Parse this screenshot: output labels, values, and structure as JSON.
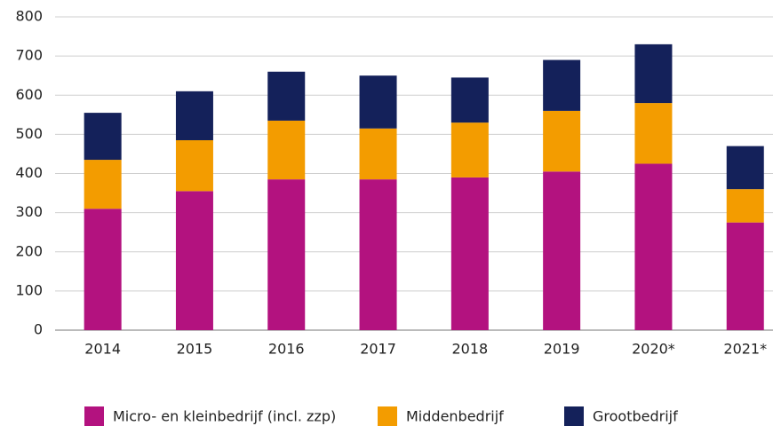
{
  "chart_data": {
    "type": "stacked_bar",
    "categories": [
      "2014",
      "2015",
      "2016",
      "2017",
      "2018",
      "2019",
      "2020*",
      "2021*"
    ],
    "series": [
      {
        "name": "Micro- en kleinbedrijf (incl. zzp)",
        "color": "#b3127f",
        "values": [
          310,
          355,
          385,
          385,
          390,
          405,
          425,
          275
        ]
      },
      {
        "name": "Middenbedrijf",
        "color": "#f39c00",
        "values": [
          125,
          130,
          150,
          130,
          140,
          155,
          155,
          85
        ]
      },
      {
        "name": "Grootbedrijf",
        "color": "#14215a",
        "values": [
          120,
          125,
          125,
          135,
          115,
          130,
          150,
          110
        ]
      }
    ],
    "ylim": [
      0,
      800
    ],
    "yticks": [
      0,
      100,
      200,
      300,
      400,
      500,
      600,
      700,
      800
    ],
    "grid": true
  }
}
